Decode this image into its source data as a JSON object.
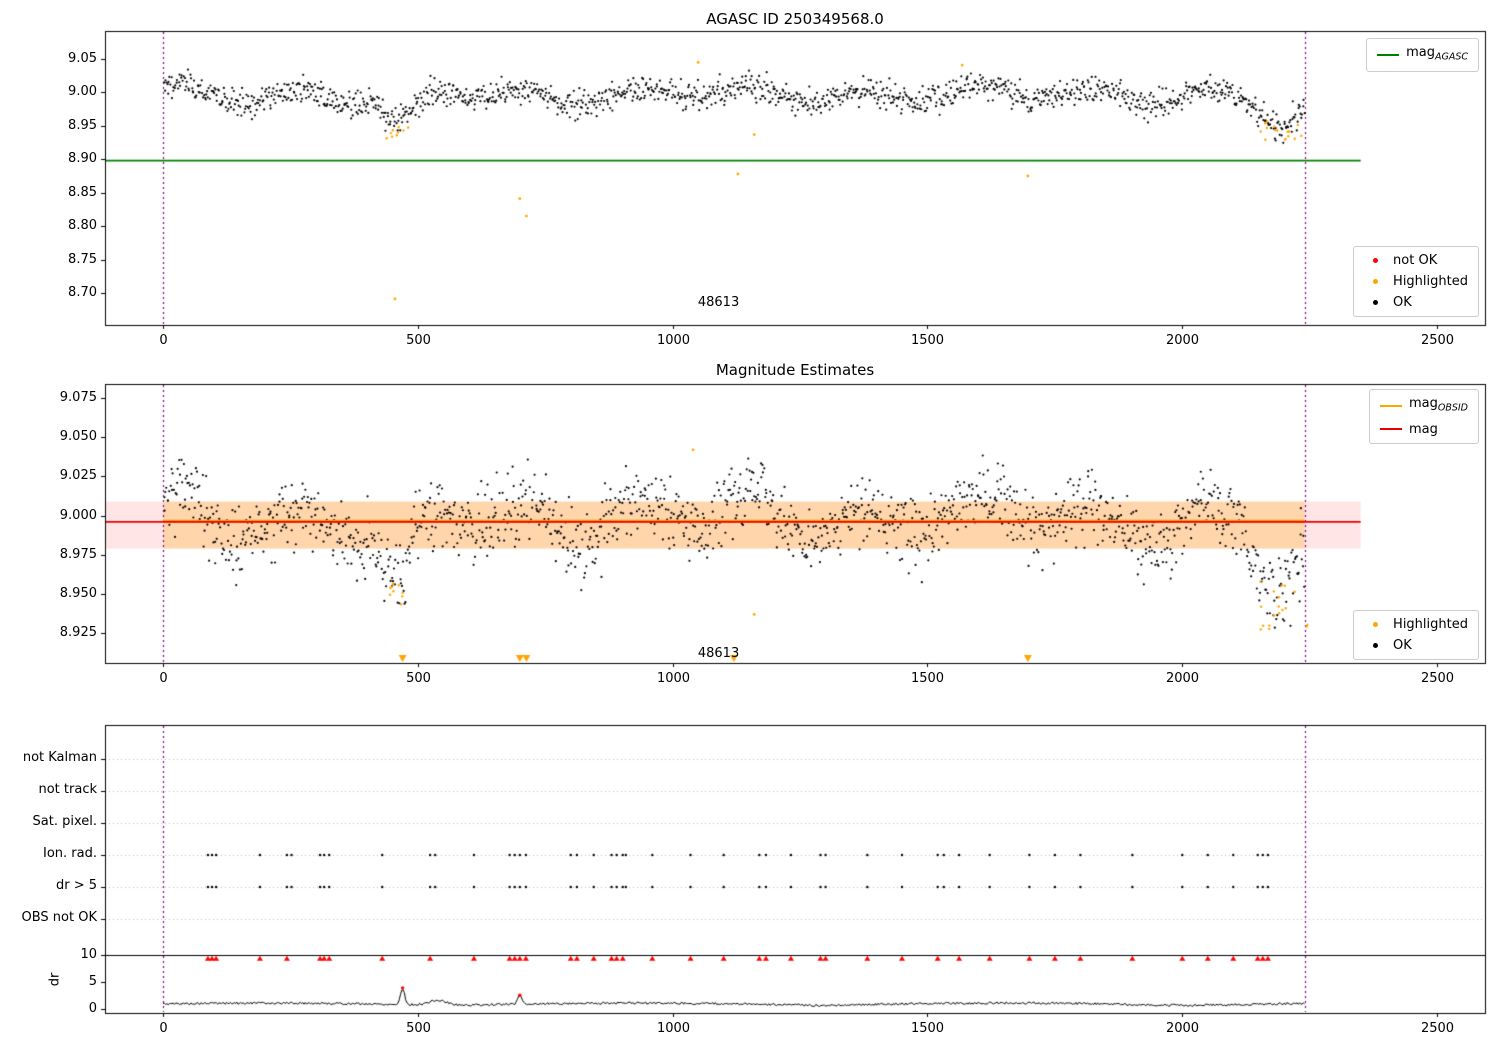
{
  "figure": {
    "background": "#ffffff"
  },
  "colors": {
    "ok": "#000000",
    "highlighted": "#ffa500",
    "not_ok": "#ff0000",
    "mag_agasc": "#008000",
    "mag_obsid": "#ffa500",
    "mag": "#e60000",
    "band_obsid": "rgba(255,165,0,0.25)",
    "band_mag": "rgba(255,0,0,0.10)",
    "vline": "#8b008b",
    "grid": "#bbbbbb",
    "spine": "#000000"
  },
  "chart_data": [
    {
      "type": "scatter",
      "title": "AGASC ID 250349568.0",
      "xlim": [
        -114,
        2594
      ],
      "ylim": [
        8.652,
        9.092
      ],
      "x_ticks": [
        0,
        500,
        1000,
        1500,
        2000,
        2500
      ],
      "y_ticks": [
        9.05,
        9.0,
        8.95,
        8.9,
        8.85,
        8.8,
        8.75,
        8.7
      ],
      "y_tick_labels": [
        "9.05",
        "9.00",
        "8.95",
        "8.90",
        "8.85",
        "8.80",
        "8.75",
        "8.70"
      ],
      "annotation": {
        "text": "48613",
        "x": 1090,
        "y": 8.685
      },
      "vlines": [
        0,
        2240
      ],
      "hline": {
        "prefix": "mag",
        "sub": "AGASC",
        "y": 8.898,
        "x_range": [
          -114,
          2350
        ]
      },
      "legend_lines": [
        {
          "prefix": "mag",
          "sub": "AGASC",
          "color_key": "mag_agasc"
        }
      ],
      "legend_points": [
        {
          "label": "not OK",
          "color_key": "not_ok"
        },
        {
          "label": "Highlighted",
          "color_key": "highlighted"
        },
        {
          "label": "OK",
          "color_key": "ok"
        }
      ],
      "ok_series": {
        "n": 1400,
        "x_range": [
          2,
          2240
        ],
        "baseline": 8.997,
        "noise": 0.01,
        "seed": 42,
        "wave": [
          {
            "period": 224,
            "amp": 0.01,
            "phase": 0.6
          },
          {
            "period": 560,
            "amp": 0.006,
            "phase": 2.0
          }
        ],
        "dips": [
          {
            "center": 462,
            "width": 46,
            "depth": 0.047
          },
          {
            "center": 2196,
            "width": 60,
            "depth": 0.047
          }
        ]
      },
      "highlighted_clusters": [
        {
          "x_range": [
            438,
            482
          ],
          "y_range": [
            8.93,
            8.955
          ],
          "n": 9,
          "seed": 7
        },
        {
          "x_range": [
            2150,
            2252
          ],
          "y_range": [
            8.928,
            8.958
          ],
          "n": 16,
          "seed": 8
        }
      ],
      "highlighted_points": [
        [
          455,
          8.691
        ],
        [
          700,
          8.841
        ],
        [
          713,
          8.815
        ],
        [
          1128,
          8.878
        ],
        [
          1160,
          8.937
        ],
        [
          1697,
          8.875
        ],
        [
          1050,
          9.045
        ],
        [
          1568,
          9.041
        ]
      ]
    },
    {
      "type": "scatter",
      "title": "Magnitude Estimates",
      "xlim": [
        -114,
        2594
      ],
      "ylim": [
        8.906,
        9.084
      ],
      "x_ticks": [
        0,
        500,
        1000,
        1500,
        2000,
        2500
      ],
      "y_ticks": [
        9.075,
        9.05,
        9.025,
        9.0,
        8.975,
        8.95,
        8.925
      ],
      "y_tick_labels": [
        "9.075",
        "9.050",
        "9.025",
        "9.000",
        "8.975",
        "8.950",
        "8.925"
      ],
      "annotation": {
        "text": "48613",
        "x": 1090,
        "y": 8.912
      },
      "vlines": [
        0,
        2240
      ],
      "band_mag": {
        "y_range": [
          8.979,
          9.009
        ],
        "x_range": [
          -114,
          2350
        ]
      },
      "band_obsid": {
        "y_range": [
          8.979,
          9.009
        ],
        "x_range": [
          0,
          2240
        ]
      },
      "line_mag": {
        "y": 8.996,
        "x_range": [
          -114,
          2350
        ]
      },
      "line_obsid": {
        "y": 8.9965,
        "x_range": [
          0,
          2240
        ]
      },
      "legend_lines": [
        {
          "prefix": "mag",
          "sub": "OBSID",
          "color_key": "mag_obsid"
        },
        {
          "prefix": "mag",
          "sub": "",
          "color_key": "mag"
        }
      ],
      "legend_points": [
        {
          "label": "Highlighted",
          "color_key": "highlighted"
        },
        {
          "label": "OK",
          "color_key": "ok"
        }
      ],
      "ok_series": {
        "n": 1400,
        "x_range": [
          2,
          2240
        ],
        "baseline": 8.999,
        "noise": 0.011,
        "seed": 43,
        "wave": [
          {
            "period": 224,
            "amp": 0.012,
            "phase": 0.6
          },
          {
            "period": 560,
            "amp": 0.006,
            "phase": 2.0
          }
        ],
        "dips": [
          {
            "center": 462,
            "width": 46,
            "depth": 0.05
          },
          {
            "center": 2196,
            "width": 60,
            "depth": 0.048
          }
        ]
      },
      "highlighted_clusters": [
        {
          "x_range": [
            440,
            482
          ],
          "y_range": [
            8.935,
            8.958
          ],
          "n": 10,
          "seed": 9
        },
        {
          "x_range": [
            2150,
            2252
          ],
          "y_range": [
            8.925,
            8.958
          ],
          "n": 18,
          "seed": 10
        }
      ],
      "highlighted_points": [
        [
          1160,
          8.937
        ],
        [
          1040,
          9.042
        ]
      ],
      "clip_markers_x": [
        470,
        700,
        713,
        1120,
        1697
      ]
    },
    {
      "type": "event-rows",
      "categories": [
        "not Kalman",
        "not track",
        "Sat. pixel.",
        "Ion. rad.",
        "dr > 5",
        "OBS not OK"
      ],
      "active_rows": [
        "Ion. rad.",
        "dr > 5"
      ],
      "xlim": [
        -114,
        2594
      ],
      "x_ticks": [
        0,
        500,
        1000,
        1500,
        2000,
        2500
      ],
      "dr_ticks": [
        10,
        5,
        0
      ],
      "ylabel": "dr",
      "vlines": [
        0,
        2240
      ],
      "hline_dr": 10,
      "event_x": [
        88,
        96,
        104,
        190,
        243,
        252,
        308,
        316,
        326,
        430,
        524,
        534,
        610,
        680,
        690,
        700,
        712,
        800,
        812,
        845,
        880,
        890,
        902,
        908,
        960,
        1035,
        1100,
        1170,
        1183,
        1232,
        1290,
        1300,
        1382,
        1450,
        1520,
        1532,
        1562,
        1622,
        1700,
        1750,
        1800,
        1902,
        2000,
        2050,
        2100,
        2148,
        2158,
        2168
      ],
      "red_flag_x": [
        88,
        96,
        104,
        190,
        243,
        308,
        316,
        326,
        430,
        524,
        610,
        680,
        690,
        700,
        712,
        800,
        812,
        845,
        880,
        890,
        902,
        960,
        1035,
        1100,
        1170,
        1183,
        1232,
        1290,
        1300,
        1382,
        1450,
        1520,
        1562,
        1622,
        1700,
        1750,
        1800,
        1902,
        2000,
        2050,
        2100,
        2148,
        2158,
        2168
      ],
      "red_flag_dr": 9.3,
      "dr_series": {
        "n": 900,
        "x_range": [
          0,
          2240
        ],
        "base": 0.45,
        "wave_amp": 0.45,
        "wave_period": 230,
        "noise": 0.4,
        "seed": 5,
        "spikes": [
          {
            "center": 470,
            "height": 2.9,
            "width": 6
          },
          {
            "center": 700,
            "height": 1.6,
            "width": 6
          },
          {
            "center": 540,
            "height": 0.9,
            "width": 25
          }
        ]
      },
      "red_points": [
        [
          470,
          3.9
        ],
        [
          700,
          2.55
        ]
      ]
    }
  ]
}
